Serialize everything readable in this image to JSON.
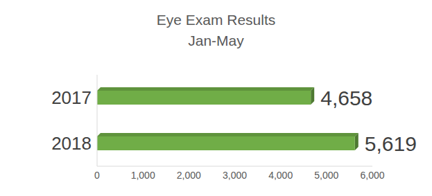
{
  "chart_data": {
    "type": "bar",
    "title": "Eye Exam Results",
    "subtitle": "Jan-May",
    "orientation": "horizontal",
    "categories": [
      "2017",
      "2018"
    ],
    "values": [
      4658,
      5619
    ],
    "value_labels": [
      "4,658",
      "5,619"
    ],
    "data_labels": true,
    "color": "#70ad47",
    "xlim": [
      0,
      6000
    ],
    "xticks": [
      0,
      {
        "value": 1000,
        "label": "1,000"
      },
      {
        "value": 2000,
        "label": "2,000"
      },
      {
        "value": 3000,
        "label": "3,000"
      },
      {
        "value": 4000,
        "label": "4,000"
      },
      {
        "value": 5000,
        "label": "5,000"
      },
      {
        "value": 6000,
        "label": "6,000"
      }
    ],
    "grid": false
  }
}
